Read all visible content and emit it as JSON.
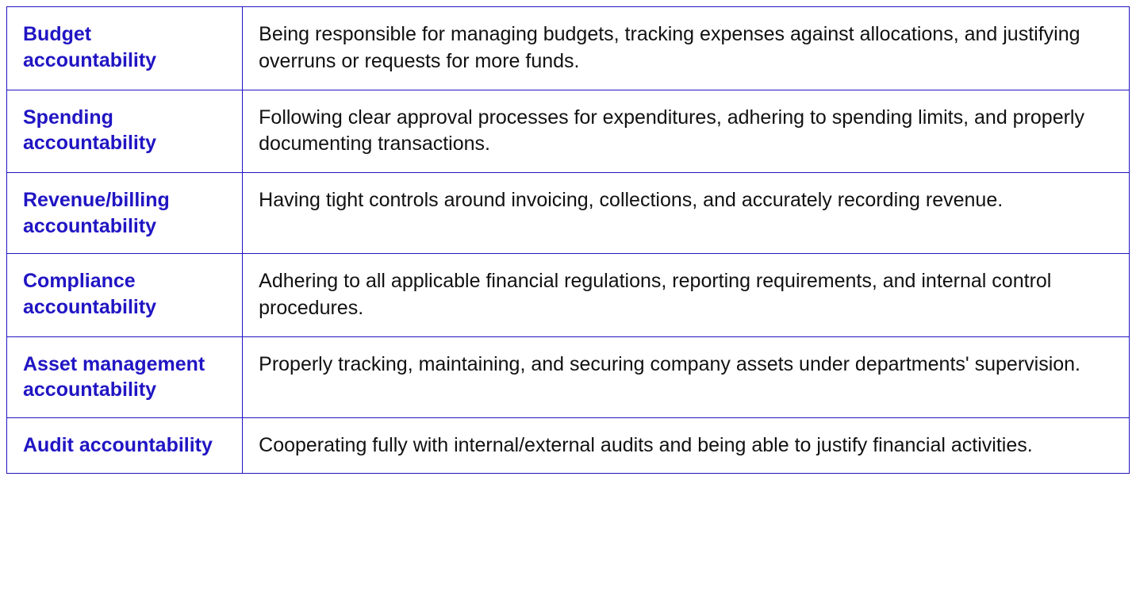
{
  "table": {
    "border_color": "#2015c3",
    "term_color": "#2015c3",
    "desc_color": "#111111",
    "background_color": "#ffffff",
    "term_fontsize": 25,
    "desc_fontsize": 25,
    "term_fontweight": 700,
    "columns": [
      "term",
      "description"
    ],
    "col_widths": [
      "21%",
      "79%"
    ],
    "rows": [
      {
        "term": "Budget accountability",
        "description": "Being responsible for managing budgets, tracking expenses against allocations, and justifying overruns or requests for more funds."
      },
      {
        "term": "Spending accountability",
        "description": "Following clear approval processes for expenditures, adhering to spending limits, and properly documenting transactions."
      },
      {
        "term": "Revenue/billing accountability",
        "description": "Having tight controls around invoicing, collections, and accurately recording revenue."
      },
      {
        "term": "Compliance accountability",
        "description": "Adhering to all applicable financial regulations, reporting requirements, and internal control procedures."
      },
      {
        "term": "Asset management accountability",
        "description": "Properly tracking, maintaining, and securing company assets under departments' supervision."
      },
      {
        "term": "Audit accountability",
        "description": "Cooperating fully with internal/external audits and being able to justify financial activities."
      }
    ]
  }
}
